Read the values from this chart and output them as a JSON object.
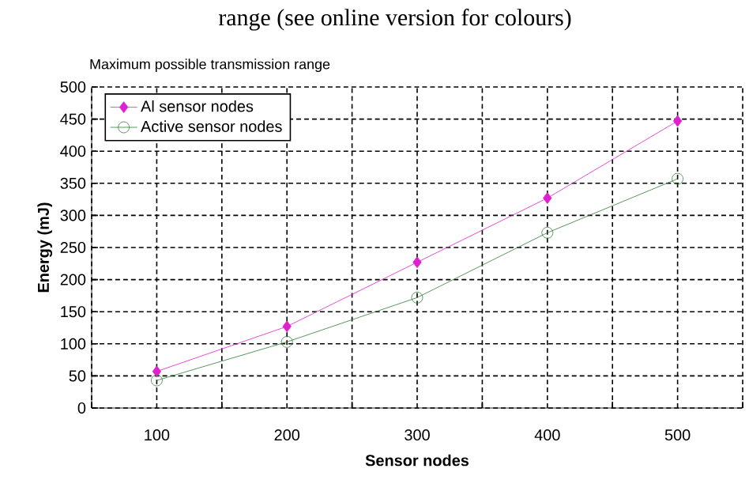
{
  "chart_data": {
    "type": "line",
    "title": "Maximum possible transmission range",
    "xlabel": "Sensor nodes",
    "ylabel": "Energy (mJ)",
    "annotations": [
      "range (see online version for colours)"
    ],
    "categories": [
      "100",
      "200",
      "300",
      "400",
      "500"
    ],
    "series": [
      {
        "name": "Al sensor nodes",
        "color": "#e020d0",
        "marker": "diamond",
        "values": [
          57,
          127,
          227,
          327,
          447
        ]
      },
      {
        "name": "Active sensor nodes",
        "color": "#2e7d32",
        "marker": "circle",
        "values": [
          43,
          103,
          172,
          273,
          357
        ]
      }
    ],
    "ylim": [
      0,
      500
    ],
    "yticks": [
      0,
      50,
      100,
      150,
      200,
      250,
      300,
      350,
      400,
      450,
      500
    ],
    "grid": true,
    "legend": "top left"
  }
}
